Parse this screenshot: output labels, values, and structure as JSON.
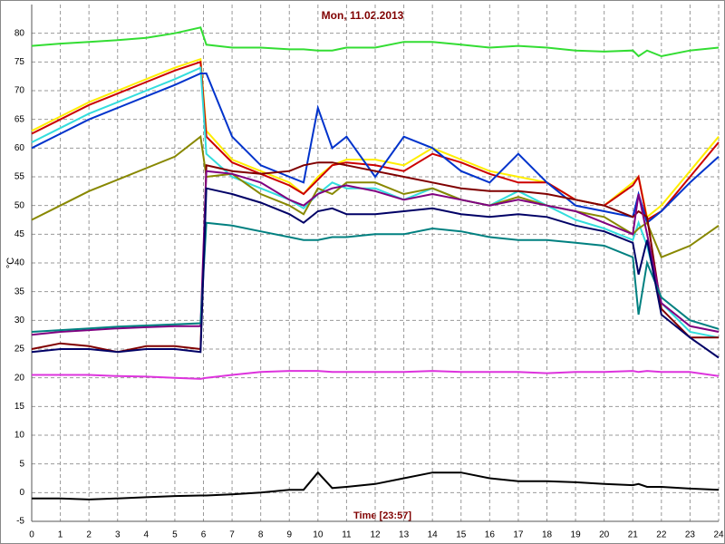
{
  "chart_data": {
    "type": "line",
    "title": "Mon, 11.02.2013",
    "xlabel": "Time [23:57]",
    "ylabel": "°C",
    "x": [
      0,
      1,
      2,
      3,
      4,
      5,
      5.9,
      6.1,
      7,
      8,
      9,
      9.5,
      10,
      10.5,
      11,
      12,
      13,
      14,
      15,
      16,
      17,
      18,
      19,
      20,
      21,
      21.2,
      21.5,
      22,
      23,
      24
    ],
    "series": [
      {
        "color": "#33dd33",
        "values": [
          77.8,
          78.2,
          78.5,
          78.8,
          79.2,
          80,
          81,
          78,
          77.5,
          77.5,
          77.2,
          77.2,
          77,
          77,
          77.5,
          77.5,
          78.5,
          78.5,
          78,
          77.5,
          77.8,
          77.5,
          77,
          76.8,
          77,
          76,
          77,
          76,
          77,
          77.5
        ]
      },
      {
        "color": "#ffee00",
        "values": [
          63,
          65.5,
          68,
          70,
          72,
          74,
          75.5,
          63,
          58,
          56,
          54,
          52,
          55,
          57,
          58,
          58,
          57,
          60,
          58,
          56,
          55,
          54,
          51,
          50,
          54,
          55,
          48,
          50,
          56,
          62
        ]
      },
      {
        "color": "#cc0000",
        "values": [
          62.5,
          65,
          67.5,
          69.5,
          71.5,
          73.5,
          75,
          62,
          57.5,
          55.5,
          53.5,
          52,
          54.5,
          57,
          57.5,
          57,
          56,
          59,
          57.5,
          55.5,
          54,
          54,
          51,
          50,
          53.5,
          55,
          47.5,
          49,
          55,
          61
        ]
      },
      {
        "color": "#33dddd",
        "values": [
          61,
          63.5,
          66,
          68,
          70,
          72,
          74,
          59,
          55,
          53,
          51,
          49.5,
          52,
          54,
          53,
          53,
          51,
          53,
          51,
          50,
          52.5,
          50,
          47.5,
          46,
          44,
          47,
          43,
          33,
          28,
          27
        ]
      },
      {
        "color": "#0033cc",
        "values": [
          60,
          62.5,
          65,
          67,
          69,
          71,
          73,
          73,
          62,
          57,
          55,
          54,
          67,
          60,
          62,
          55,
          62,
          60,
          56,
          54,
          59,
          54,
          50,
          49,
          48,
          52,
          47,
          49,
          54,
          58.5
        ]
      },
      {
        "color": "#888800",
        "values": [
          47.5,
          50,
          52.5,
          54.5,
          56.5,
          58.5,
          62,
          55,
          55.5,
          52,
          50,
          48.5,
          53,
          52,
          54,
          54,
          52,
          53,
          51,
          50,
          51.5,
          50,
          49,
          48,
          45,
          46,
          47,
          41,
          43,
          46.5
        ]
      },
      {
        "color": "#800000",
        "values": [
          25,
          26,
          25.5,
          24.5,
          25.5,
          25.5,
          25,
          57,
          56,
          55.5,
          56,
          57,
          57.5,
          57.5,
          57,
          56,
          55,
          54,
          53,
          52.5,
          52.5,
          52,
          51,
          50,
          48,
          49,
          48,
          32,
          27,
          27
        ]
      },
      {
        "color": "#800080",
        "values": [
          27.5,
          28,
          28.3,
          28.6,
          28.8,
          29,
          29,
          56,
          55.5,
          54,
          51,
          50,
          52,
          53,
          53.5,
          52.5,
          51,
          52,
          51,
          50,
          51,
          50,
          49,
          47,
          45,
          52,
          45,
          33,
          29,
          28
        ]
      },
      {
        "color": "#008080",
        "values": [
          28,
          28.3,
          28.6,
          28.9,
          29.1,
          29.3,
          29.5,
          47,
          46.5,
          45.5,
          44.5,
          44,
          44,
          44.5,
          44.5,
          45,
          45,
          46,
          45.5,
          44.5,
          44,
          44,
          43.5,
          43,
          41,
          31,
          40,
          34,
          30,
          28.5
        ]
      },
      {
        "color": "#000066",
        "values": [
          24.5,
          25,
          25,
          24.5,
          25,
          25,
          24.5,
          53,
          52,
          50.5,
          48.5,
          47,
          49,
          49.5,
          48.5,
          48.5,
          49,
          49.5,
          48.5,
          48,
          48.5,
          48,
          46.5,
          45.5,
          43.5,
          38,
          44,
          31,
          27,
          23.5
        ]
      },
      {
        "color": "#dd33dd",
        "values": [
          20.5,
          20.5,
          20.5,
          20.3,
          20.2,
          20,
          19.8,
          20,
          20.5,
          21,
          21.2,
          21.2,
          21.2,
          21,
          21,
          21,
          21,
          21.2,
          21,
          21,
          21,
          20.8,
          21,
          21,
          21.2,
          21,
          21.2,
          21,
          21,
          20.3
        ]
      },
      {
        "color": "#000000",
        "values": [
          -1,
          -1,
          -1.2,
          -1,
          -0.8,
          -0.6,
          -0.5,
          -0.5,
          -0.3,
          0,
          0.5,
          0.5,
          3.5,
          0.8,
          1,
          1.5,
          2.5,
          3.5,
          3.5,
          2.5,
          2,
          2,
          1.8,
          1.5,
          1.3,
          1.5,
          1,
          1,
          0.7,
          0.5
        ]
      }
    ],
    "xlim": [
      0,
      24
    ],
    "xticks": [
      0,
      1,
      2,
      3,
      4,
      5,
      6,
      7,
      8,
      9,
      10,
      11,
      12,
      13,
      14,
      15,
      16,
      17,
      18,
      19,
      20,
      21,
      22,
      23,
      24
    ],
    "ylim": [
      -5,
      85
    ],
    "yticks": [
      -5,
      0,
      5,
      10,
      15,
      20,
      25,
      30,
      35,
      40,
      45,
      50,
      55,
      60,
      65,
      70,
      75,
      80
    ],
    "grid": true
  }
}
